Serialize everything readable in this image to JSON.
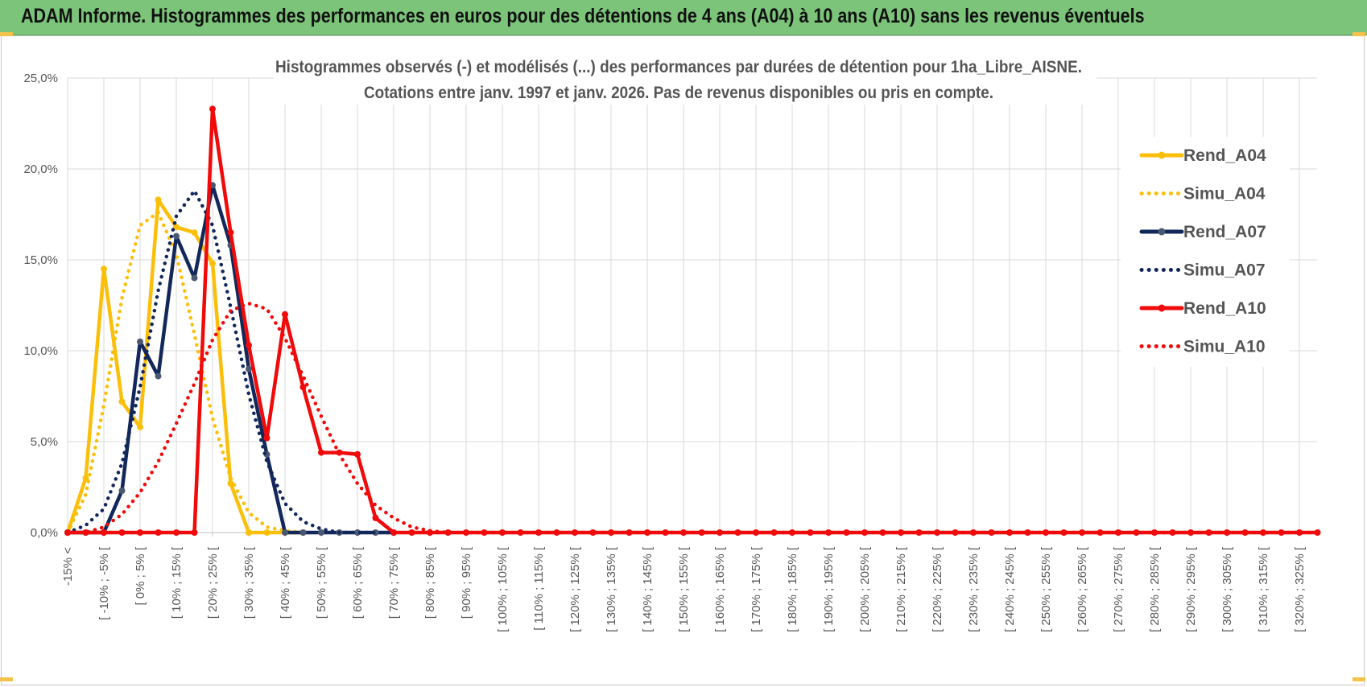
{
  "header": {
    "title": "ADAM Informe. Histogrammes des performances en euros pour des détentions de 4 ans (A04) à 10 ans (A10) sans les revenus éventuels"
  },
  "colors": {
    "banner": "#7cc47a",
    "A04": "#fbbf0a",
    "A07": "#12275a",
    "A10": "#f00a0a",
    "grid": "#d9d9d9",
    "text": "#555555"
  },
  "chart_data": {
    "type": "line",
    "title": [
      "Histogrammes observés (-) et modélisés (...)  des performances par durées de détention pour 1ha_Libre_AISNE.",
      "Cotations entre janv. 1997 et janv. 2026. Pas de revenus disponibles ou pris en compte."
    ],
    "xlabel": "",
    "ylabel": "",
    "ylim": [
      0,
      25
    ],
    "y_ticks": [
      "0,0%",
      "5,0%",
      "10,0%",
      "15,0%",
      "20,0%",
      "25,0%"
    ],
    "x_tick_labels": [
      "-15% <",
      "[ -10% ; -5% [",
      "[ 0% ; 5% [",
      "[ 10% ; 15% [",
      "[ 20% ; 25% [",
      "[ 30% ; 35% [",
      "[ 40% ; 45% [",
      "[ 50% ; 55% [",
      "[ 60% ; 65% [",
      "[ 70% ; 75% [",
      "[ 80% ; 85% [",
      "[ 90% ; 95% [",
      "[ 100% ; 105% [",
      "[ 110% ; 115% [",
      "[ 120% ; 125% [",
      "[ 130% ; 135% [",
      "[ 140% ; 145% [",
      "[ 150% ; 155% [",
      "[ 160% ; 165% [",
      "[ 170% ; 175% [",
      "[ 180% ; 185% [",
      "[ 190% ; 195% [",
      "[ 200% ; 205% [",
      "[ 210% ; 215% [",
      "[ 220% ; 225% [",
      "[ 230% ; 235% [",
      "[ 240% ; 245% [",
      "[ 250% ; 255% [",
      "[ 260% ; 265% [",
      "[ 270% ; 275% [",
      "[ 280% ; 285% [",
      "[ 290% ; 295% [",
      "[ 300% ; 305% [",
      "[ 310% ; 315% [",
      "[ 320% ; 325% ["
    ],
    "grid": true,
    "legend_position": "right",
    "series": [
      {
        "name": "Rend_A04",
        "style": "solid",
        "color": "#fbbf0a",
        "values": [
          0,
          3,
          14.5,
          7.2,
          5.8,
          18.3,
          16.8,
          16.5,
          14.8,
          2.7,
          0,
          0,
          0,
          0
        ]
      },
      {
        "name": "Simu_A04",
        "style": "dotted",
        "color": "#fbbf0a",
        "values": [
          0,
          2.1,
          7,
          12.9,
          16.9,
          17.6,
          15.3,
          10.9,
          6.3,
          3,
          1.1,
          0.3,
          0.1,
          0
        ]
      },
      {
        "name": "Rend_A07",
        "style": "solid",
        "color": "#12275a",
        "values": [
          0,
          0,
          0,
          2.3,
          10.5,
          8.6,
          16.3,
          14,
          19.1,
          15.8,
          9,
          4.3,
          0,
          0,
          0,
          0,
          0,
          0,
          0
        ]
      },
      {
        "name": "Simu_A07",
        "style": "dotted",
        "color": "#12275a",
        "values": [
          0,
          0.4,
          1.3,
          3.8,
          8,
          13.3,
          17.4,
          18.8,
          16.9,
          12.4,
          7.6,
          3.9,
          1.6,
          0.6,
          0.2,
          0,
          0,
          0,
          0
        ]
      },
      {
        "name": "Rend_A10",
        "style": "solid",
        "color": "#f00a0a",
        "values": [
          0,
          0,
          0,
          0,
          0,
          0,
          0,
          0,
          23.3,
          16.5,
          10.3,
          5.2,
          12,
          8,
          4.4,
          4.4,
          4.3,
          0.8,
          0,
          0,
          0,
          0,
          0,
          0,
          0,
          0,
          0,
          0,
          0,
          0,
          0,
          0,
          0,
          0,
          0,
          0,
          0,
          0,
          0,
          0,
          0,
          0,
          0,
          0,
          0,
          0,
          0,
          0,
          0,
          0,
          0,
          0,
          0,
          0,
          0,
          0,
          0,
          0,
          0,
          0,
          0,
          0,
          0,
          0,
          0,
          0,
          0,
          0,
          0,
          0
        ]
      },
      {
        "name": "Simu_A10",
        "style": "dotted",
        "color": "#f00a0a",
        "values": [
          0,
          0,
          0.3,
          1,
          2.2,
          3.9,
          6,
          8.2,
          10.6,
          12.2,
          12.6,
          12.3,
          10.7,
          8.6,
          6.4,
          4.3,
          2.7,
          1.5,
          0.8,
          0.3,
          0.1,
          0,
          0,
          0,
          0,
          0,
          0,
          0,
          0,
          0,
          0,
          0,
          0,
          0,
          0,
          0,
          0,
          0,
          0,
          0,
          0,
          0,
          0,
          0,
          0,
          0,
          0,
          0,
          0,
          0,
          0,
          0,
          0,
          0,
          0,
          0,
          0,
          0,
          0,
          0,
          0,
          0,
          0,
          0,
          0,
          0,
          0,
          0,
          0,
          0
        ]
      }
    ]
  }
}
